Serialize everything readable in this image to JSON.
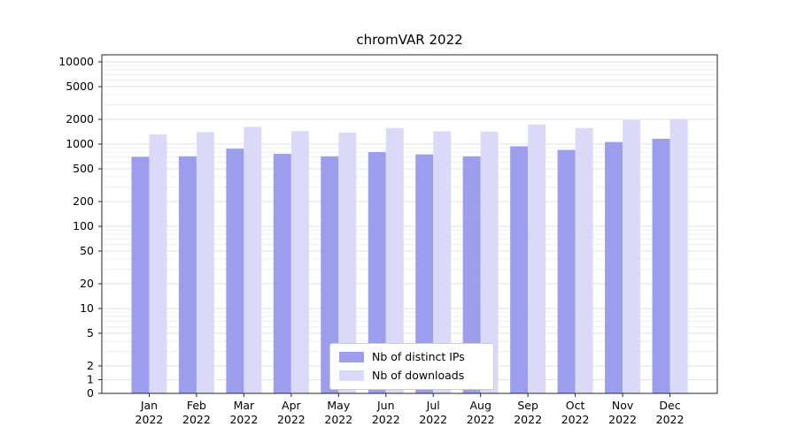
{
  "figure": {
    "title": "chromVAR 2022"
  },
  "chart_data": {
    "type": "bar",
    "title": "chromVAR 2022",
    "xlabel": "",
    "ylabel": "",
    "y_scale": "symlog",
    "ylim": [
      0,
      12000
    ],
    "y_ticks": [
      0,
      1,
      2,
      5,
      10,
      20,
      50,
      100,
      200,
      500,
      1000,
      2000,
      5000,
      10000
    ],
    "grid": true,
    "legend_position": "lower center",
    "categories": [
      "Jan",
      "Feb",
      "Mar",
      "Apr",
      "May",
      "Jun",
      "Jul",
      "Aug",
      "Sep",
      "Oct",
      "Nov",
      "Dec"
    ],
    "x_sublabel": "2022",
    "series": [
      {
        "name": "Nb of distinct IPs",
        "color": "#9d9dee",
        "values": [
          700,
          710,
          880,
          760,
          710,
          800,
          750,
          710,
          940,
          850,
          1060,
          1160
        ]
      },
      {
        "name": "Nb of downloads",
        "color": "#dadaf8",
        "values": [
          1310,
          1400,
          1620,
          1440,
          1380,
          1570,
          1430,
          1420,
          1730,
          1570,
          1960,
          2030
        ]
      }
    ],
    "colors": {
      "grid_major": "#e2e2e2",
      "grid_minor": "#efefef",
      "axis": "#262626",
      "text": "#000000"
    }
  }
}
